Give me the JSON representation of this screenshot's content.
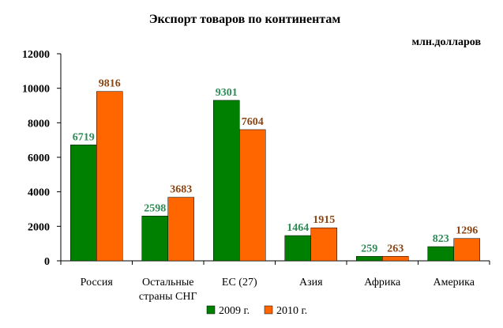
{
  "chart_data": {
    "type": "bar",
    "title": "Экспорт товаров по континентам",
    "unit_label": "млн.долларов",
    "categories": [
      [
        "Россия"
      ],
      [
        "Остальные",
        "страны СНГ"
      ],
      [
        "ЕС (27)"
      ],
      [
        "Азия"
      ],
      [
        "Африка"
      ],
      [
        "Америка"
      ]
    ],
    "series": [
      {
        "name": "2009 г.",
        "color": "#008000",
        "label_color": "#2e8b57",
        "values": [
          6719,
          2598,
          9301,
          1464,
          259,
          823
        ]
      },
      {
        "name": "2010 г.",
        "color": "#ff6600",
        "label_color": "#8b4513",
        "values": [
          9816,
          3683,
          7604,
          1915,
          263,
          1296
        ]
      }
    ],
    "ylim": [
      0,
      12000
    ],
    "yticks": [
      0,
      2000,
      4000,
      6000,
      8000,
      10000,
      12000
    ],
    "grid": false,
    "legend_position": "bottom"
  }
}
